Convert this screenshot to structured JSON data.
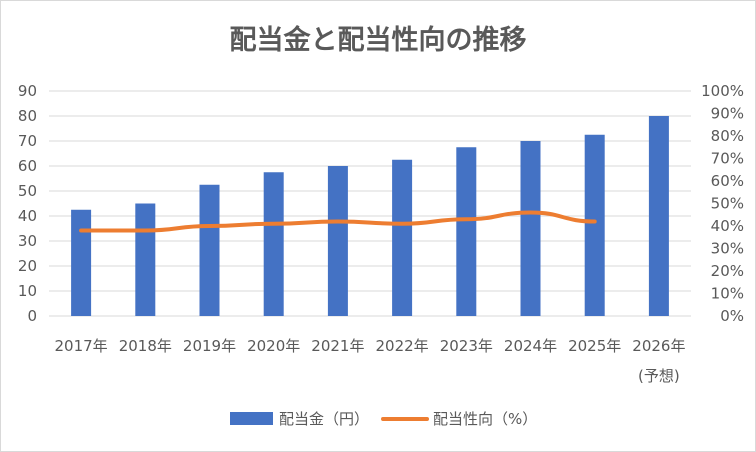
{
  "chart_data": {
    "type": "bar",
    "title": "配当金と配当性向の推移",
    "categories": [
      "2017年",
      "2018年",
      "2019年",
      "2020年",
      "2021年",
      "2022年",
      "2023年",
      "2024年",
      "2025年",
      "2026年"
    ],
    "category_sublabels": [
      "",
      "",
      "",
      "",
      "",
      "",
      "",
      "",
      "",
      "(予想)"
    ],
    "series": [
      {
        "name": "配当金（円）",
        "kind": "bar",
        "axis": "left",
        "color": "#4472c4",
        "values": [
          42.5,
          45,
          52.5,
          57.5,
          60,
          62.5,
          67.5,
          70,
          72.5,
          80
        ]
      },
      {
        "name": "配当性向（%）",
        "kind": "line",
        "axis": "right",
        "color": "#ed7d31",
        "values": [
          38,
          38,
          40,
          41,
          42,
          41,
          43,
          46,
          42,
          null
        ]
      }
    ],
    "y_left": {
      "ylim": [
        0,
        90
      ],
      "ticks": [
        "0",
        "10",
        "20",
        "30",
        "40",
        "50",
        "60",
        "70",
        "80",
        "90"
      ]
    },
    "y_right": {
      "ylim": [
        0,
        100
      ],
      "ticks": [
        "0%",
        "10%",
        "20%",
        "30%",
        "40%",
        "50%",
        "60%",
        "70%",
        "80%",
        "90%",
        "100%"
      ]
    },
    "grid": true,
    "legend_position": "bottom"
  }
}
